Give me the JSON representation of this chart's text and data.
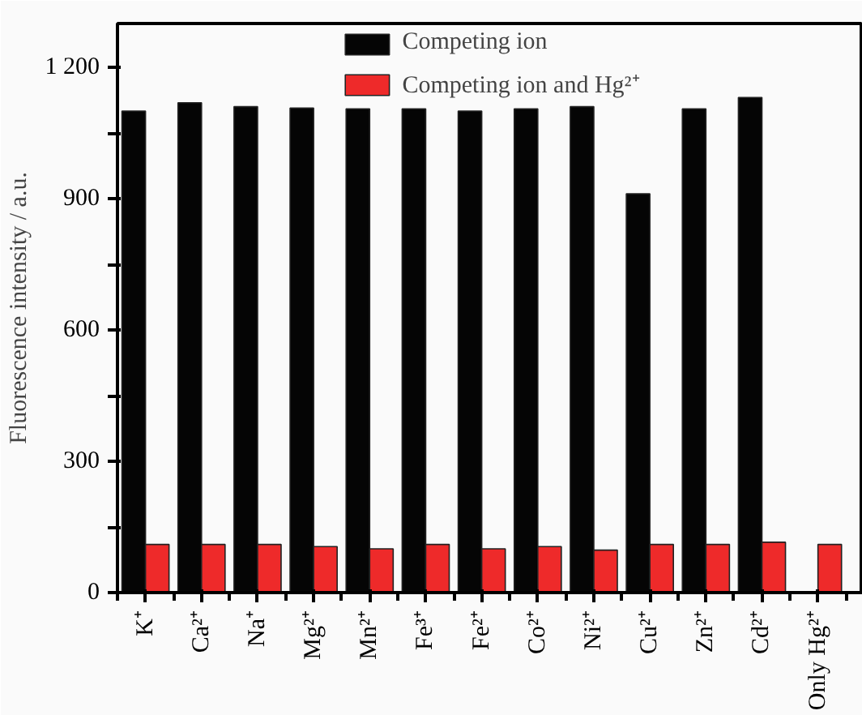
{
  "chart_data": {
    "type": "bar",
    "ylabel": "Fluorescence intensity / a.u.",
    "categories": [
      "K⁺",
      "Ca²⁺",
      "Na⁺",
      "Mg²⁺",
      "Mn²⁺",
      "Fe³⁺",
      "Fe²⁺",
      "Co²⁺",
      "Ni²⁺",
      "Cu²⁺",
      "Zn²⁺",
      "Cd²⁺",
      "Only Hg²⁺"
    ],
    "series": [
      {
        "name": "Competing ion",
        "color": "#050505",
        "values": [
          1100,
          1119,
          1110,
          1107,
          1105,
          1105,
          1100,
          1105,
          1110,
          911,
          1105,
          1131,
          null
        ]
      },
      {
        "name": "Competing ion and Hg²⁺",
        "color": "#ee2a2a",
        "values": [
          110,
          110,
          110,
          105,
          100,
          110,
          100,
          105,
          97,
          110,
          110,
          115,
          110
        ]
      }
    ],
    "ylim": [
      0,
      1300
    ],
    "yticks": [
      0,
      {
        "value": 150,
        "label": null
      },
      300,
      {
        "value": 450,
        "label": null
      },
      600,
      {
        "value": 750,
        "label": null
      },
      900,
      {
        "value": 1050,
        "label": null
      },
      {
        "value": 1200,
        "label": "1 200"
      }
    ],
    "grid": false,
    "legend": "top"
  }
}
